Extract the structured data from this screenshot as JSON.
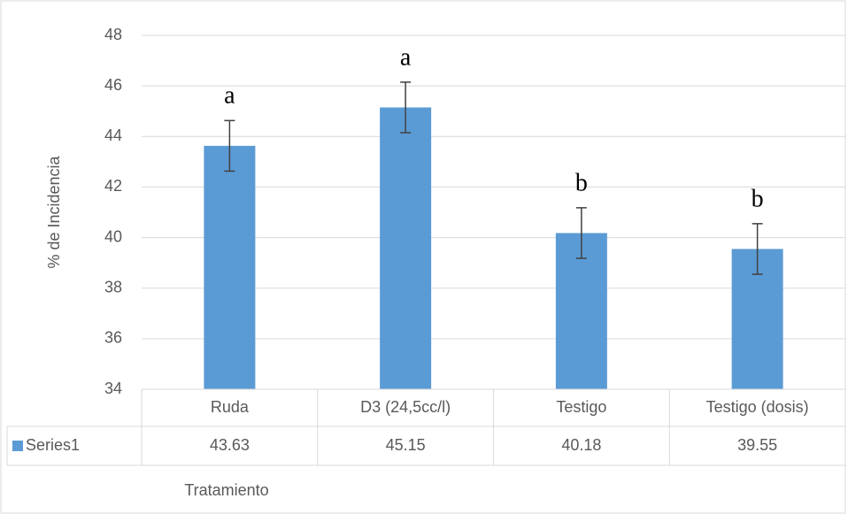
{
  "chart_data": {
    "type": "bar",
    "categories": [
      "Ruda",
      "D3 (24,5cc/l)",
      "Testigo",
      "Testigo (dosis)"
    ],
    "series": [
      {
        "name": "Series1",
        "color": "#5b9bd5",
        "values": [
          43.63,
          45.15,
          40.18,
          39.55
        ],
        "errors": [
          1,
          1,
          1,
          1
        ]
      }
    ],
    "annotations": [
      "a",
      "a",
      "b",
      "b"
    ],
    "ylabel": "% de Incidencia",
    "xlabel": "Tratamiento",
    "ylim": [
      34,
      48
    ],
    "yticks": [
      34,
      36,
      38,
      40,
      42,
      44,
      46,
      48
    ],
    "grid": true,
    "data_table": true
  }
}
